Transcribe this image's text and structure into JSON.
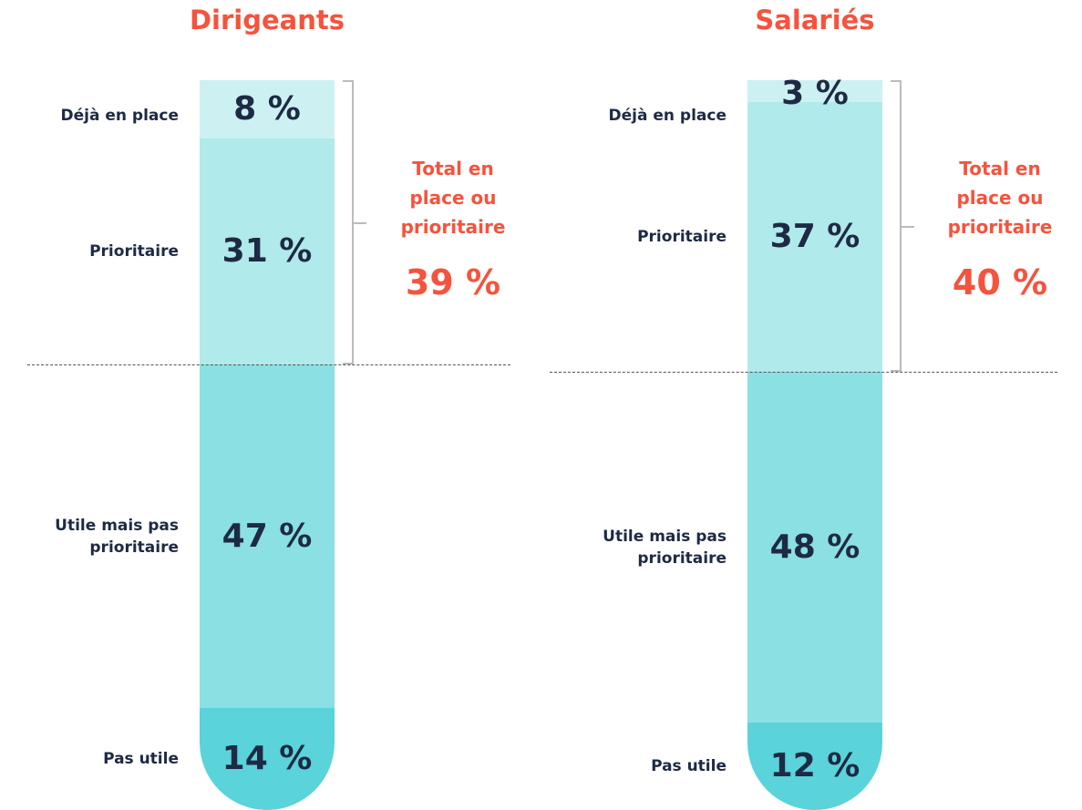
{
  "chart_data": [
    {
      "type": "stacked_bar",
      "title": "Dirigeants",
      "categories": [
        "Déjà en place",
        "Prioritaire",
        "Utile mais pas prioritaire",
        "Pas utile"
      ],
      "values": [
        8,
        31,
        47,
        14
      ],
      "value_labels": [
        "8 %",
        "31 %",
        "47 %",
        "14 %"
      ],
      "colors": [
        "#cdf1f2",
        "#b0eaea",
        "#8ae0e2",
        "#5ad3da"
      ],
      "ylim": [
        0,
        100
      ],
      "annotation": "Total en place ou prioritaire",
      "total": 39,
      "total_label": "39 %"
    },
    {
      "type": "stacked_bar",
      "title": "Salariés",
      "categories": [
        "Déjà en place",
        "Prioritaire",
        "Utile mais pas prioritaire",
        "Pas utile"
      ],
      "values": [
        3,
        37,
        48,
        12
      ],
      "value_labels": [
        "3 %",
        "37 %",
        "48 %",
        "12 %"
      ],
      "colors": [
        "#cdf1f2",
        "#b0eaea",
        "#8ae0e2",
        "#5ad3da"
      ],
      "ylim": [
        0,
        100
      ],
      "annotation": "Total en place ou prioritaire",
      "total": 40,
      "total_label": "40 %"
    }
  ]
}
